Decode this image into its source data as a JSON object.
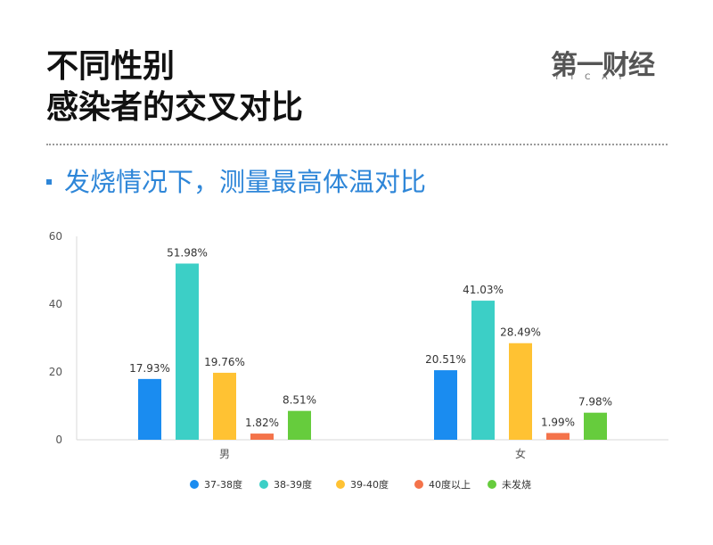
{
  "header": {
    "title_line1": "不同性别",
    "title_line2": "感染者的交叉对比",
    "logo_main": "第一财经",
    "logo_sub": "YICAI"
  },
  "subtitle": "发烧情况下，测量最高体温对比",
  "colors": {
    "title": "#111111",
    "subtitle": "#2e86d8",
    "series": [
      "#1a8cf0",
      "#3ccfc6",
      "#ffc233",
      "#f4734a",
      "#66cc3d"
    ]
  },
  "chart_data": {
    "type": "bar",
    "title": "",
    "xlabel": "",
    "ylabel": "",
    "categories": [
      "男",
      "女"
    ],
    "ylim": [
      0,
      60
    ],
    "yticks": [
      0,
      20,
      40,
      60
    ],
    "grid": false,
    "legend_position": "bottom",
    "series": [
      {
        "name": "37-38度",
        "values": [
          17.93,
          20.51
        ],
        "labels": [
          "17.93%",
          "20.51%"
        ],
        "color": "#1a8cf0"
      },
      {
        "name": "38-39度",
        "values": [
          51.98,
          41.03
        ],
        "labels": [
          "51.98%",
          "41.03%"
        ],
        "color": "#3ccfc6"
      },
      {
        "name": "39-40度",
        "values": [
          19.76,
          28.49
        ],
        "labels": [
          "19.76%",
          "28.49%"
        ],
        "color": "#ffc233"
      },
      {
        "name": "40度以上",
        "values": [
          1.82,
          1.99
        ],
        "labels": [
          "1.82%",
          "1.99%"
        ],
        "color": "#f4734a"
      },
      {
        "name": "未发烧",
        "values": [
          8.51,
          7.98
        ],
        "labels": [
          "8.51%",
          "7.98%"
        ],
        "color": "#66cc3d"
      }
    ]
  }
}
